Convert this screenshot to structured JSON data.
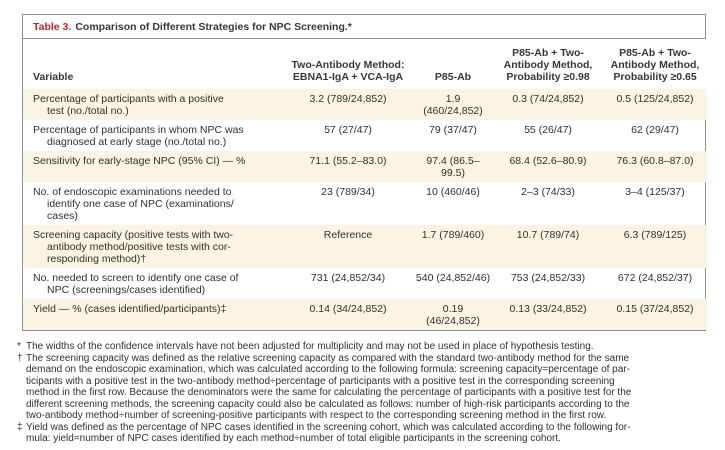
{
  "colors": {
    "accent_red": "#c5202e",
    "row_shade": "#fbf4e2",
    "border_gray": "#8f8f8f",
    "text": "#33302d"
  },
  "table": {
    "label": "Table 3.",
    "title": "Comparison of Different Strategies for NPC Screening.*",
    "columns": [
      "Variable",
      "Two-Antibody Method:\nEBNA1-IgA + VCA-IgA",
      "P85-Ab",
      "P85-Ab + Two-\nAntibody Method,\nProbability ≥0.98",
      "P85-Ab + Two-\nAntibody Method,\nProbability ≥0.65"
    ],
    "rows": [
      {
        "variable": "Percentage of participants with a positive\ntest (no./total no.)",
        "values": [
          "3.2 (789/24,852)",
          "1.9 (460/24,852)",
          "0.3 (74/24,852)",
          "0.5 (125/24,852)"
        ]
      },
      {
        "variable": "Percentage of participants in whom NPC was\ndiagnosed at early stage (no./total no.)",
        "values": [
          "57 (27/47)",
          "79 (37/47)",
          "55 (26/47)",
          "62 (29/47)"
        ]
      },
      {
        "variable": "Sensitivity for early-stage NPC (95% CI) — %",
        "values": [
          "71.1 (55.2–83.0)",
          "97.4 (86.5–99.5)",
          "68.4 (52.6–80.9)",
          "76.3 (60.8–87.0)"
        ]
      },
      {
        "variable": "No. of endoscopic examinations needed to\nidentify one case of NPC (examinations/\ncases)",
        "values": [
          "23 (789/34)",
          "10 (460/46)",
          "2–3 (74/33)",
          "3–4 (125/37)"
        ]
      },
      {
        "variable": "Screening capacity (positive tests with two-\nantibody method/positive tests with cor-\nresponding method)†",
        "values": [
          "Reference",
          "1.7 (789/460)",
          "10.7 (789/74)",
          "6.3 (789/125)"
        ]
      },
      {
        "variable": "No. needed to screen to identify one case of\nNPC (screenings/cases identified)",
        "values": [
          "731 (24,852/34)",
          "540 (24,852/46)",
          "753 (24,852/33)",
          "672 (24,852/37)"
        ]
      },
      {
        "variable": "Yield — % (cases identified/participants)‡",
        "values": [
          "0.14 (34/24,852)",
          "0.19 (46/24,852)",
          "0.13 (33/24,852)",
          "0.15 (37/24,852)"
        ]
      }
    ]
  },
  "footnotes": [
    {
      "marker": "*",
      "text": "The widths of the confidence intervals have not been adjusted for multiplicity and may not be used in place of hypothesis testing."
    },
    {
      "marker": "†",
      "text": "The screening capacity was defined as the relative screening capacity as compared with the standard two-antibody method for the same\ndemand on the endoscopic examination, which was calculated according to the following formula: screening capacity=percentage of par-\nticipants with a positive test in the two-antibody method÷percentage of participants with a positive test in the corresponding screening\nmethod in the first row. Because the denominators were the same for calculating the percentage of participants with a positive test for the\ndifferent screening methods, the screening capacity could also be calculated as follows: number of high-risk participants according to the\ntwo-antibody method÷number of screening-positive participants with respect to the corresponding screening method in the first row."
    },
    {
      "marker": "‡",
      "text": "Yield was defined as the percentage of NPC cases identified in the screening cohort, which was calculated according to the following for-\nmula: yield=number of NPC cases identified by each method÷number of total eligible participants in the screening cohort."
    }
  ]
}
